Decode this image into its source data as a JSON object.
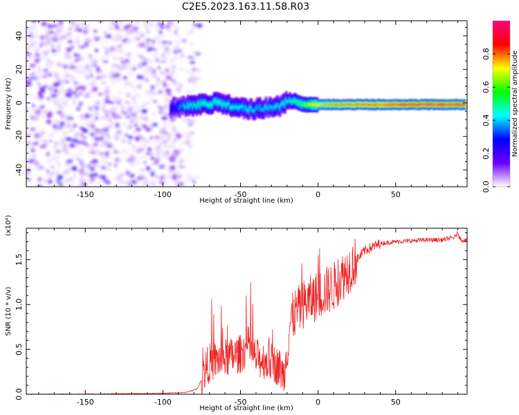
{
  "figure_title": "C2E5.2023.163.11.58.R03",
  "chart_data": [
    {
      "type": "heatmap",
      "title": "",
      "xlabel": "Height of straight line (km)",
      "ylabel": "Frequency (Hz)",
      "xlim": [
        -188,
        96
      ],
      "ylim": [
        -50,
        49
      ],
      "x_ticks": [
        "-150",
        "-100",
        "-50",
        "0",
        "50"
      ],
      "x_tick_values": [
        -150,
        -100,
        -50,
        0,
        50
      ],
      "y_ticks": [
        "40",
        "20",
        "0",
        "-20",
        "-40"
      ],
      "y_tick_values": [
        40,
        20,
        0,
        -20,
        -40
      ],
      "colorbar": {
        "label": "Normalized spectral amplitude",
        "range": [
          0,
          1
        ],
        "ticks": [
          "0.0",
          "0.2",
          "0.4",
          "0.6",
          "0.8"
        ],
        "tick_values": [
          0.0,
          0.2,
          0.4,
          0.6,
          0.8
        ],
        "colormap": [
          "#ffffff",
          "#6a00ff",
          "#0000ff",
          "#00ffff",
          "#00ff00",
          "#ffff00",
          "#ff0000",
          "#ff0080"
        ]
      },
      "ridge": {
        "x": [
          -95,
          -85,
          -75,
          -65,
          -55,
          -45,
          -35,
          -25,
          -18,
          -10,
          0,
          20,
          40,
          60,
          80,
          95
        ],
        "frequency": [
          -3,
          -2,
          -1,
          0,
          -2,
          -4,
          -3,
          -2,
          2,
          -1,
          -1,
          -1,
          -1,
          -1,
          -1,
          -1
        ],
        "amplitude": [
          0.25,
          0.4,
          0.45,
          0.45,
          0.42,
          0.4,
          0.38,
          0.4,
          0.45,
          0.55,
          0.7,
          0.8,
          0.85,
          0.9,
          0.9,
          0.9
        ]
      },
      "noise_region": {
        "x_from": -188,
        "x_to": -88,
        "amplitude_range": [
          0.05,
          0.25
        ]
      },
      "grid": false
    },
    {
      "type": "line",
      "title": "",
      "xlabel": "Height of straight line (km)",
      "ylabel": "SNR (10 * v/v)",
      "y_scale_label": "(x10⁴)",
      "xlim": [
        -188,
        96
      ],
      "ylim": [
        0,
        1.85
      ],
      "x_ticks": [
        "-150",
        "-100",
        "-50",
        "0",
        "50"
      ],
      "x_tick_values": [
        -150,
        -100,
        -50,
        0,
        50
      ],
      "y_ticks": [
        "0.0",
        "0.5",
        "1.0",
        "1.5"
      ],
      "y_tick_values": [
        0.0,
        0.5,
        1.0,
        1.5
      ],
      "color": "#ee2222",
      "series": [
        {
          "x": [
            -188,
            -150,
            -100,
            -85,
            -78,
            -74,
            -72,
            -70,
            -65,
            -60,
            -55,
            -50,
            -47,
            -45,
            -42,
            -40,
            -35,
            -30,
            -25,
            -22,
            -20,
            -18,
            -15,
            -12,
            -10,
            -5,
            0,
            5,
            10,
            15,
            20,
            25,
            30,
            40,
            50,
            60,
            70,
            80,
            88,
            90,
            92,
            96
          ],
          "y": [
            0.0,
            0.0,
            0.01,
            0.02,
            0.06,
            0.2,
            0.3,
            0.35,
            0.38,
            0.4,
            0.42,
            0.45,
            0.5,
            0.55,
            0.45,
            0.4,
            0.38,
            0.36,
            0.3,
            0.2,
            0.5,
            0.8,
            0.9,
            0.95,
            1.0,
            1.05,
            1.1,
            1.15,
            1.2,
            1.3,
            1.4,
            1.5,
            1.6,
            1.68,
            1.7,
            1.71,
            1.72,
            1.72,
            1.75,
            1.8,
            1.72,
            1.71
          ]
        }
      ],
      "grid": false
    }
  ]
}
